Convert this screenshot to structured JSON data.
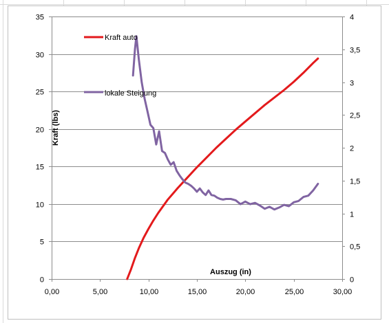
{
  "chart_data": {
    "type": "line",
    "xlabel": "Auszug (in)",
    "ylabel": "Kraft (lbs)",
    "xlim": [
      0,
      30
    ],
    "ylim": [
      0,
      35
    ],
    "y2lim": [
      0,
      4
    ],
    "grid": true,
    "legend_position": "top-left, inside plot",
    "x_tick_labels": [
      "0,00",
      "5,00",
      "10,00",
      "15,00",
      "20,00",
      "25,00",
      "30,00"
    ],
    "y_tick_labels": [
      "0",
      "5",
      "10",
      "15",
      "20",
      "25",
      "30",
      "35"
    ],
    "y2_tick_labels": [
      "0",
      "0,5",
      "1",
      "1,5",
      "2",
      "2,5",
      "3",
      "3,5",
      "4"
    ],
    "series": [
      {
        "name": "Kraft auto",
        "axis": "left",
        "color": "#e31a1c",
        "points": [
          [
            7.8,
            0
          ],
          [
            8.2,
            1.3
          ],
          [
            8.6,
            2.8
          ],
          [
            9.0,
            4.1
          ],
          [
            9.5,
            5.5
          ],
          [
            10.0,
            6.7
          ],
          [
            10.5,
            7.8
          ],
          [
            11.0,
            8.8
          ],
          [
            12.0,
            10.6
          ],
          [
            13.0,
            12.1
          ],
          [
            14.0,
            13.5
          ],
          [
            15.0,
            14.9
          ],
          [
            16.0,
            16.2
          ],
          [
            17.0,
            17.5
          ],
          [
            18.0,
            18.7
          ],
          [
            19.0,
            19.9
          ],
          [
            20.0,
            21.0
          ],
          [
            21.0,
            22.1
          ],
          [
            22.0,
            23.2
          ],
          [
            23.0,
            24.2
          ],
          [
            24.0,
            25.2
          ],
          [
            25.0,
            26.3
          ],
          [
            26.0,
            27.5
          ],
          [
            27.0,
            28.8
          ],
          [
            27.5,
            29.4
          ]
        ]
      },
      {
        "name": "lokale Steigung",
        "axis": "right",
        "color": "#8064a2",
        "points": [
          [
            8.4,
            3.1
          ],
          [
            8.6,
            3.5
          ],
          [
            8.75,
            3.7
          ],
          [
            9.0,
            3.35
          ],
          [
            9.3,
            3.0
          ],
          [
            9.6,
            2.75
          ],
          [
            9.9,
            2.55
          ],
          [
            10.2,
            2.35
          ],
          [
            10.5,
            2.3
          ],
          [
            10.8,
            2.05
          ],
          [
            11.1,
            2.25
          ],
          [
            11.4,
            1.95
          ],
          [
            11.7,
            1.92
          ],
          [
            12.0,
            1.82
          ],
          [
            12.3,
            1.74
          ],
          [
            12.6,
            1.78
          ],
          [
            12.9,
            1.65
          ],
          [
            13.2,
            1.58
          ],
          [
            13.5,
            1.52
          ],
          [
            13.8,
            1.47
          ],
          [
            14.1,
            1.45
          ],
          [
            14.4,
            1.42
          ],
          [
            14.7,
            1.38
          ],
          [
            15.0,
            1.33
          ],
          [
            15.3,
            1.38
          ],
          [
            15.6,
            1.32
          ],
          [
            15.9,
            1.28
          ],
          [
            16.2,
            1.35
          ],
          [
            16.5,
            1.28
          ],
          [
            16.8,
            1.27
          ],
          [
            17.1,
            1.24
          ],
          [
            17.4,
            1.22
          ],
          [
            17.7,
            1.21
          ],
          [
            18.0,
            1.22
          ],
          [
            18.5,
            1.22
          ],
          [
            19.0,
            1.2
          ],
          [
            19.5,
            1.14
          ],
          [
            20.0,
            1.18
          ],
          [
            20.5,
            1.14
          ],
          [
            21.0,
            1.16
          ],
          [
            21.5,
            1.12
          ],
          [
            22.0,
            1.07
          ],
          [
            22.5,
            1.1
          ],
          [
            23.0,
            1.06
          ],
          [
            23.5,
            1.09
          ],
          [
            24.0,
            1.13
          ],
          [
            24.5,
            1.11
          ],
          [
            25.0,
            1.17
          ],
          [
            25.5,
            1.19
          ],
          [
            26.0,
            1.25
          ],
          [
            26.5,
            1.27
          ],
          [
            27.0,
            1.35
          ],
          [
            27.5,
            1.45
          ]
        ]
      }
    ]
  }
}
